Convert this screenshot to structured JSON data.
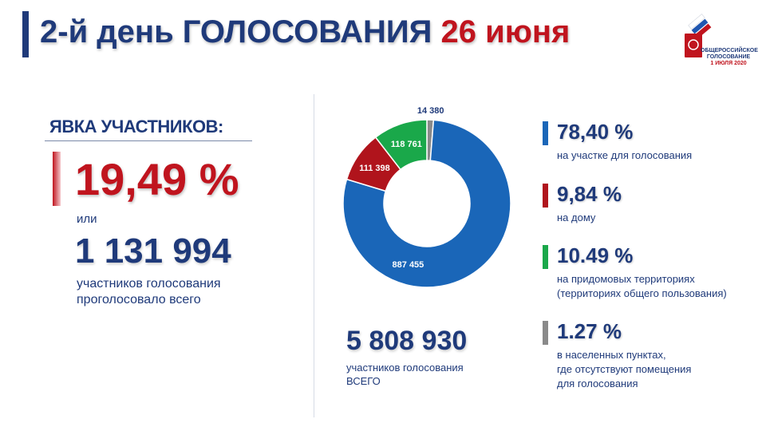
{
  "header": {
    "title_part1": "2-й день ГОЛОСОВАНИЯ",
    "title_part2": "26 июня",
    "logo_line1": "ОБЩЕРОССИЙСКОЕ",
    "logo_line2": "ГОЛОСОВАНИЕ",
    "logo_line3": "1 ИЮЛЯ 2020"
  },
  "turnout": {
    "heading": "ЯВКА УЧАСТНИКОВ:",
    "percent": "19,49 %",
    "or_label": "или",
    "count": "1 131 994",
    "caption_line1": "участников голосования",
    "caption_line2": "проголосовало всего"
  },
  "total": {
    "value": "5 808 930",
    "caption_line1": "участников голосования",
    "caption_line2": "ВСЕГО"
  },
  "legend": [
    {
      "value": "78,40 %",
      "desc_line1": "на участке для голосования",
      "desc_line2": "",
      "desc_line3": "",
      "color": "#1a66b8"
    },
    {
      "value": "9,84 %",
      "desc_line1": "на дому",
      "desc_line2": "",
      "desc_line3": "",
      "color": "#b0141c"
    },
    {
      "value": "10.49 %",
      "desc_line1": "на придомовых территориях",
      "desc_line2": "(территориях общего пользования)",
      "desc_line3": "",
      "color": "#1aa84a"
    },
    {
      "value": "1.27 %",
      "desc_line1": "в населенных пунктах,",
      "desc_line2": "где отсутствуют помещения",
      "desc_line3": "для голосования",
      "color": "#8a8a8a"
    }
  ],
  "chart_data": {
    "type": "pie",
    "donut": true,
    "categories": [
      "на участке для голосования",
      "на дому",
      "на придомовых территориях",
      "в населенных пунктах"
    ],
    "values": [
      887455,
      111398,
      118761,
      14380
    ],
    "value_labels": [
      "887 455",
      "111 398",
      "118 761",
      "14 380"
    ],
    "colors": [
      "#1a66b8",
      "#b0141c",
      "#1aa84a",
      "#8a8a8a"
    ]
  }
}
